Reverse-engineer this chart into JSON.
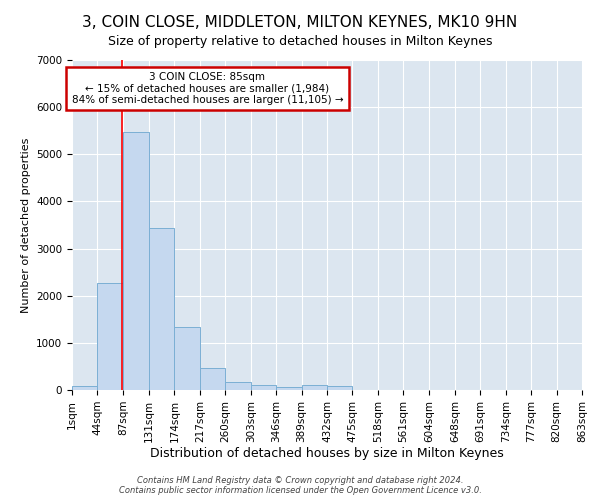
{
  "title": "3, COIN CLOSE, MIDDLETON, MILTON KEYNES, MK10 9HN",
  "subtitle": "Size of property relative to detached houses in Milton Keynes",
  "xlabel": "Distribution of detached houses by size in Milton Keynes",
  "ylabel": "Number of detached properties",
  "bins": [
    1,
    44,
    87,
    131,
    174,
    217,
    260,
    303,
    346,
    389,
    432,
    475,
    518,
    561,
    604,
    648,
    691,
    734,
    777,
    820,
    863
  ],
  "bin_labels": [
    "1sqm",
    "44sqm",
    "87sqm",
    "131sqm",
    "174sqm",
    "217sqm",
    "260sqm",
    "303sqm",
    "346sqm",
    "389sqm",
    "432sqm",
    "475sqm",
    "518sqm",
    "561sqm",
    "604sqm",
    "648sqm",
    "691sqm",
    "734sqm",
    "777sqm",
    "820sqm",
    "863sqm"
  ],
  "counts": [
    75,
    2270,
    5480,
    3430,
    1330,
    460,
    170,
    105,
    70,
    100,
    75,
    0,
    0,
    0,
    0,
    0,
    0,
    0,
    0,
    0
  ],
  "bar_color": "#c5d8ef",
  "bar_edge_color": "#7bafd4",
  "red_line_x": 85,
  "ylim": [
    0,
    7000
  ],
  "annotation_text": "3 COIN CLOSE: 85sqm\n← 15% of detached houses are smaller (1,984)\n84% of semi-detached houses are larger (11,105) →",
  "annotation_box_color": "#ffffff",
  "annotation_box_edge": "#cc0000",
  "footer": "Contains HM Land Registry data © Crown copyright and database right 2024.\nContains public sector information licensed under the Open Government Licence v3.0.",
  "fig_bg_color": "#ffffff",
  "bg_color": "#dce6f0",
  "title_fontsize": 11,
  "subtitle_fontsize": 9,
  "ylabel_fontsize": 8,
  "xlabel_fontsize": 9,
  "tick_fontsize": 7.5,
  "footer_fontsize": 6
}
